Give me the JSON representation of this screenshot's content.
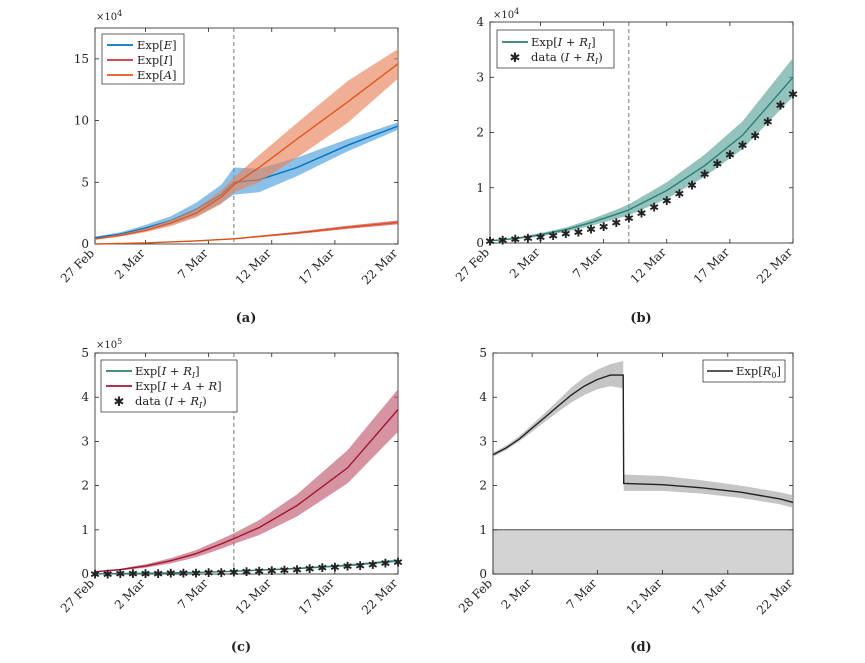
{
  "chart_data": [
    {
      "type": "line",
      "panel": "a",
      "caption": "(a)",
      "x_tick_labels": [
        "27 Feb",
        "2 Mar",
        "7 Mar",
        "12 Mar",
        "17 Mar",
        "22 Mar"
      ],
      "x_day_range": [
        0,
        24
      ],
      "vline_day": 11,
      "ylim": [
        0,
        175000
      ],
      "y_ticks": [
        0,
        50000,
        100000,
        150000
      ],
      "y_tick_labels": [
        "0",
        "5",
        "10",
        "15"
      ],
      "y_exponent": "×10",
      "y_exponent_power": "4",
      "legend": [
        "Exp[E]",
        "Exp[I]",
        "Exp[A]"
      ],
      "series": [
        {
          "name": "Exp[E]",
          "color": "#0072BD",
          "band_color": "#4D9FDC",
          "x": [
            0,
            2,
            4,
            6,
            8,
            10,
            11,
            13,
            16,
            20,
            24
          ],
          "values": [
            5000,
            8000,
            13000,
            19000,
            28000,
            40000,
            50000,
            52000,
            62000,
            80000,
            95500
          ],
          "lower": [
            4000,
            6500,
            10500,
            15500,
            22500,
            33000,
            40000,
            42000,
            55000,
            75000,
            92500
          ],
          "upper": [
            6000,
            9500,
            15500,
            22500,
            33500,
            48000,
            62000,
            61000,
            70000,
            85000,
            98500
          ]
        },
        {
          "name": "Exp[I]",
          "color": "#D95319",
          "band_color": "#D0323C",
          "x": [
            0,
            4,
            8,
            11,
            16,
            20,
            24
          ],
          "values": [
            0,
            900,
            2500,
            4200,
            9000,
            13500,
            17500
          ],
          "lower": [
            0,
            700,
            2100,
            3700,
            8000,
            12200,
            16000
          ],
          "upper": [
            0,
            1100,
            2900,
            4700,
            10000,
            14800,
            19000
          ]
        },
        {
          "name": "Exp[A]",
          "color": "#E2571F",
          "band_color": "#E8835A",
          "x": [
            0,
            2,
            4,
            6,
            8,
            10,
            11,
            13,
            16,
            20,
            24
          ],
          "values": [
            4000,
            7000,
            11000,
            17000,
            25000,
            38000,
            48000,
            62000,
            85000,
            115000,
            146000
          ],
          "lower": [
            3500,
            6000,
            9500,
            14500,
            21500,
            32500,
            42000,
            50000,
            70000,
            98000,
            134000
          ],
          "upper": [
            4500,
            8000,
            12500,
            19500,
            28500,
            43500,
            54000,
            72000,
            98000,
            132000,
            158000
          ]
        }
      ]
    },
    {
      "type": "line",
      "panel": "b",
      "caption": "(b)",
      "x_tick_labels": [
        "27 Feb",
        "2 Mar",
        "7 Mar",
        "12 Mar",
        "17 Mar",
        "22 Mar"
      ],
      "x_day_range": [
        0,
        24
      ],
      "vline_day": 11,
      "ylim": [
        0,
        40000
      ],
      "y_ticks": [
        0,
        10000,
        20000,
        30000,
        40000
      ],
      "y_tick_labels": [
        "0",
        "1",
        "2",
        "3",
        "4"
      ],
      "y_exponent": "×10",
      "y_exponent_power": "4",
      "legend": [
        "Exp[I + R_I]",
        "data (I + R_I)"
      ],
      "series": [
        {
          "name": "Exp[I + R_I]",
          "color": "#2A7F74",
          "band_color": "#5AA39A",
          "x": [
            0,
            2,
            4,
            6,
            8,
            10,
            11,
            14,
            17,
            20,
            24
          ],
          "values": [
            400,
            800,
            1500,
            2400,
            3700,
            5200,
            6000,
            9500,
            14000,
            19500,
            30000
          ],
          "lower": [
            300,
            650,
            1200,
            2000,
            3100,
            4400,
            5000,
            8000,
            12000,
            17000,
            26500
          ],
          "upper": [
            500,
            950,
            1800,
            2800,
            4300,
            6000,
            7000,
            11000,
            16000,
            22000,
            33500
          ]
        },
        {
          "name": "data (I + R_I)",
          "color": "#111111",
          "marker": "star",
          "x": [
            0,
            1,
            2,
            3,
            4,
            5,
            6,
            7,
            8,
            9,
            10,
            11,
            12,
            13,
            14,
            15,
            16,
            17,
            18,
            19,
            20,
            21,
            22,
            23,
            24
          ],
          "values": [
            400,
            500,
            700,
            900,
            1100,
            1400,
            1700,
            2000,
            2500,
            3000,
            3700,
            4500,
            5400,
            6500,
            7700,
            9000,
            10500,
            12500,
            14400,
            16000,
            17700,
            19500,
            22000,
            25000,
            27000
          ]
        }
      ]
    },
    {
      "type": "line",
      "panel": "c",
      "caption": "(c)",
      "x_tick_labels": [
        "27 Feb",
        "2 Mar",
        "7 Mar",
        "12 Mar",
        "17 Mar",
        "22 Mar"
      ],
      "x_day_range": [
        0,
        24
      ],
      "vline_day": 11,
      "ylim": [
        0,
        500000
      ],
      "y_ticks": [
        0,
        100000,
        200000,
        300000,
        400000,
        500000
      ],
      "y_tick_labels": [
        "0",
        "1",
        "2",
        "3",
        "4",
        "5"
      ],
      "y_exponent": "×10",
      "y_exponent_power": "5",
      "legend": [
        "Exp[I + R_I]",
        "Exp[I + A + R]",
        "data (I + R_I)"
      ],
      "series": [
        {
          "name": "Exp[I + R_I]",
          "color": "#2A7F74",
          "band_color": "#5AA39A",
          "x": [
            0,
            4,
            8,
            11,
            16,
            20,
            24
          ],
          "values": [
            400,
            1500,
            3700,
            6000,
            12500,
            19500,
            30000
          ],
          "lower": [
            300,
            1200,
            3100,
            5000,
            10800,
            17000,
            26500
          ],
          "upper": [
            500,
            1800,
            4300,
            7000,
            14300,
            22000,
            33500
          ]
        },
        {
          "name": "Exp[I + A + R]",
          "color": "#A2142F",
          "band_color": "#C0596F",
          "x": [
            0,
            2,
            4,
            6,
            8,
            10,
            11,
            13,
            16,
            20,
            24
          ],
          "values": [
            5000,
            10000,
            18000,
            30000,
            46000,
            68000,
            80000,
            105000,
            155000,
            240000,
            372000
          ],
          "lower": [
            4000,
            8000,
            14000,
            24000,
            38000,
            57000,
            68000,
            88000,
            130000,
            205000,
            322000
          ],
          "upper": [
            6000,
            12000,
            22000,
            36000,
            54000,
            79000,
            92000,
            122000,
            180000,
            280000,
            418000
          ]
        },
        {
          "name": "data (I + R_I)",
          "color": "#111111",
          "marker": "star",
          "x": [
            0,
            1,
            2,
            3,
            4,
            5,
            6,
            7,
            8,
            9,
            10,
            11,
            12,
            13,
            14,
            15,
            16,
            17,
            18,
            19,
            20,
            21,
            22,
            23,
            24
          ],
          "values": [
            400,
            500,
            700,
            900,
            1100,
            1400,
            1700,
            2000,
            2500,
            3000,
            3700,
            4500,
            5400,
            6500,
            7700,
            9000,
            10500,
            12500,
            14400,
            16000,
            17700,
            19500,
            22000,
            25000,
            27000
          ]
        }
      ]
    },
    {
      "type": "line",
      "panel": "d",
      "caption": "(d)",
      "x_tick_labels": [
        "28 Feb",
        "2 Mar",
        "7 Mar",
        "12 Mar",
        "17 Mar",
        "22 Mar"
      ],
      "x_day_range": [
        0,
        23
      ],
      "ylim": [
        0,
        5
      ],
      "y_ticks": [
        0,
        1,
        2,
        3,
        4,
        5
      ],
      "y_tick_labels": [
        "0",
        "1",
        "2",
        "3",
        "4",
        "5"
      ],
      "threshold_band": [
        0,
        1
      ],
      "legend": [
        "Exp[R_0]"
      ],
      "series": [
        {
          "name": "Exp[R_0]",
          "color": "#222222",
          "band_color": "#A6A6A6",
          "x": [
            0,
            1,
            2,
            3,
            4,
            5,
            6,
            7,
            8,
            9,
            9.98,
            10.02,
            13,
            16,
            19,
            22,
            23
          ],
          "values": [
            2.7,
            2.85,
            3.05,
            3.3,
            3.55,
            3.8,
            4.05,
            4.25,
            4.4,
            4.5,
            4.5,
            2.05,
            2.02,
            1.95,
            1.85,
            1.7,
            1.62
          ],
          "lower": [
            2.65,
            2.8,
            3.0,
            3.22,
            3.45,
            3.67,
            3.88,
            4.05,
            4.18,
            4.25,
            4.2,
            1.88,
            1.88,
            1.82,
            1.72,
            1.58,
            1.5
          ],
          "upper": [
            2.75,
            2.9,
            3.12,
            3.38,
            3.65,
            3.93,
            4.22,
            4.45,
            4.62,
            4.75,
            4.82,
            2.25,
            2.22,
            2.12,
            2.0,
            1.85,
            1.78
          ]
        }
      ]
    }
  ]
}
